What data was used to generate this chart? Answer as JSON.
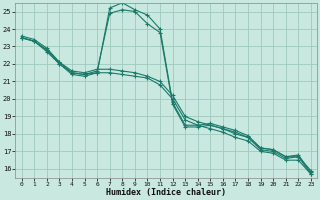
{
  "xlabel": "Humidex (Indice chaleur)",
  "bg_color": "#c8e8e0",
  "grid_color": "#a0c8bc",
  "line_color": "#1a7a6a",
  "xlim": [
    -0.5,
    23.5
  ],
  "ylim": [
    15.5,
    25.5
  ],
  "yticks": [
    16,
    17,
    18,
    19,
    20,
    21,
    22,
    23,
    24,
    25
  ],
  "xticks": [
    0,
    1,
    2,
    3,
    4,
    5,
    6,
    7,
    8,
    9,
    10,
    11,
    12,
    13,
    14,
    15,
    16,
    17,
    18,
    19,
    20,
    21,
    22,
    23
  ],
  "lines": [
    {
      "x": [
        0,
        1,
        2,
        3,
        4,
        5,
        6,
        7,
        8,
        9,
        10,
        11,
        12,
        13,
        14,
        15,
        16,
        17,
        18,
        19,
        20,
        21,
        22,
        23
      ],
      "y": [
        23.5,
        23.3,
        22.8,
        22.0,
        21.5,
        21.4,
        21.5,
        25.2,
        25.5,
        25.1,
        24.8,
        24.0,
        19.8,
        18.5,
        18.5,
        18.6,
        18.4,
        18.2,
        17.9,
        17.2,
        17.1,
        16.7,
        16.8,
        15.8
      ]
    },
    {
      "x": [
        0,
        1,
        2,
        3,
        4,
        5,
        6,
        7,
        8,
        9,
        10,
        11,
        12,
        13,
        14,
        15,
        16,
        17,
        18,
        19,
        20,
        21,
        22,
        23
      ],
      "y": [
        23.5,
        23.3,
        22.8,
        22.1,
        21.5,
        21.4,
        21.6,
        24.9,
        25.1,
        25.0,
        24.3,
        23.8,
        19.7,
        18.4,
        18.4,
        18.5,
        18.3,
        18.1,
        17.8,
        17.1,
        17.0,
        16.6,
        16.7,
        15.7
      ]
    },
    {
      "x": [
        0,
        1,
        2,
        3,
        4,
        5,
        6,
        7,
        8,
        9,
        10,
        11,
        12,
        13,
        14,
        15,
        16,
        17,
        18,
        19,
        20,
        21,
        22,
        23
      ],
      "y": [
        23.5,
        23.3,
        22.7,
        22.0,
        21.4,
        21.3,
        21.5,
        21.5,
        21.4,
        21.3,
        21.2,
        20.8,
        20.0,
        18.8,
        18.5,
        18.3,
        18.1,
        17.8,
        17.6,
        17.0,
        16.9,
        16.5,
        16.5,
        15.7
      ]
    },
    {
      "x": [
        0,
        1,
        2,
        3,
        4,
        5,
        6,
        7,
        8,
        9,
        10,
        11,
        12,
        13,
        14,
        15,
        16,
        17,
        18,
        19,
        20,
        21,
        22,
        23
      ],
      "y": [
        23.6,
        23.4,
        22.9,
        22.1,
        21.6,
        21.5,
        21.7,
        21.7,
        21.6,
        21.5,
        21.3,
        21.0,
        20.2,
        19.0,
        18.7,
        18.5,
        18.3,
        18.0,
        17.8,
        17.2,
        17.1,
        16.7,
        16.7,
        15.9
      ]
    }
  ]
}
